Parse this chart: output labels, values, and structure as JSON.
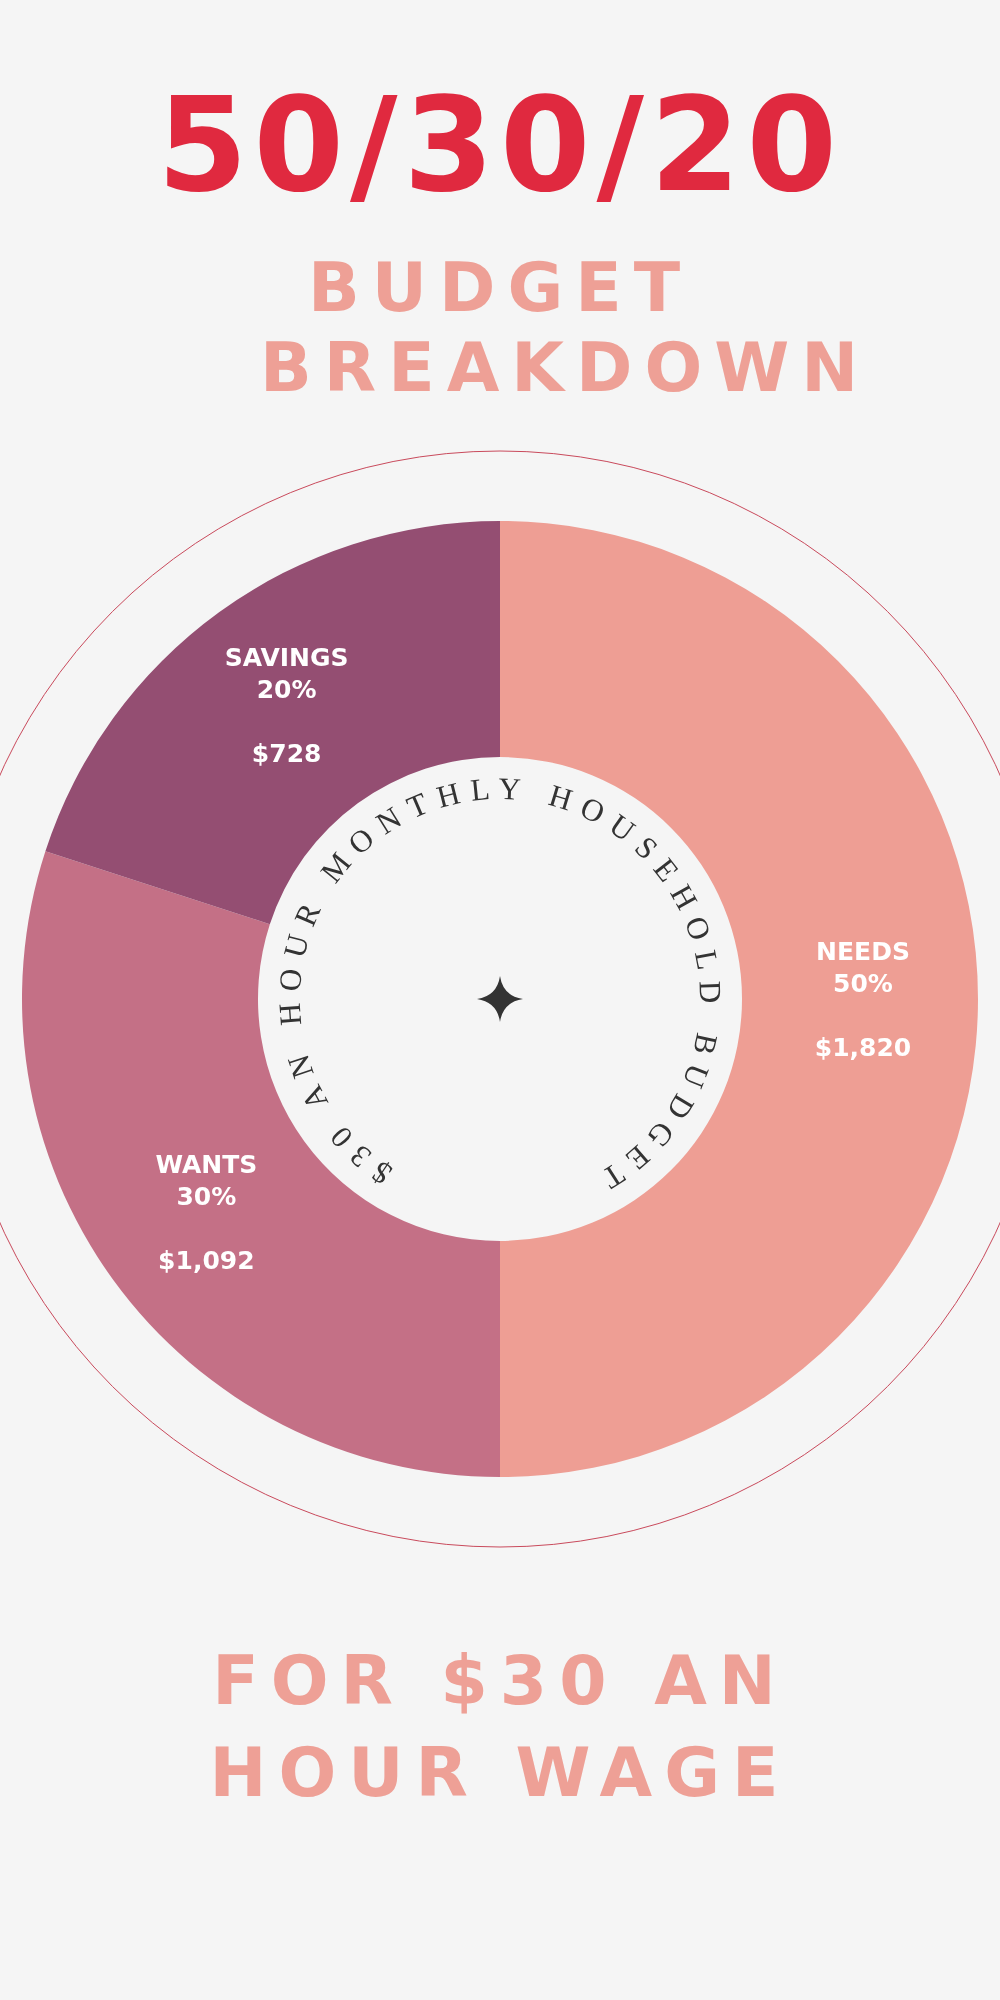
{
  "chart_data": {
    "type": "donut",
    "title": "50/30/20",
    "subtitle": "BUDGET BREAKDOWN",
    "categories": [
      "NEEDS",
      "WANTS",
      "SAVINGS"
    ],
    "values": [
      50,
      30,
      20
    ],
    "value_labels": [
      "50%\n\n$1,820",
      "30%\n\n$1,092",
      "20%\n\n$728"
    ],
    "colors": [
      "#ee9e94",
      "#c47086",
      "#944e72"
    ],
    "annotations": [
      "$30 AN HOUR MONTHLY HOUSEHOLD BUDGET",
      "FOR $30 AN HOUR WAGE"
    ]
  }
}
